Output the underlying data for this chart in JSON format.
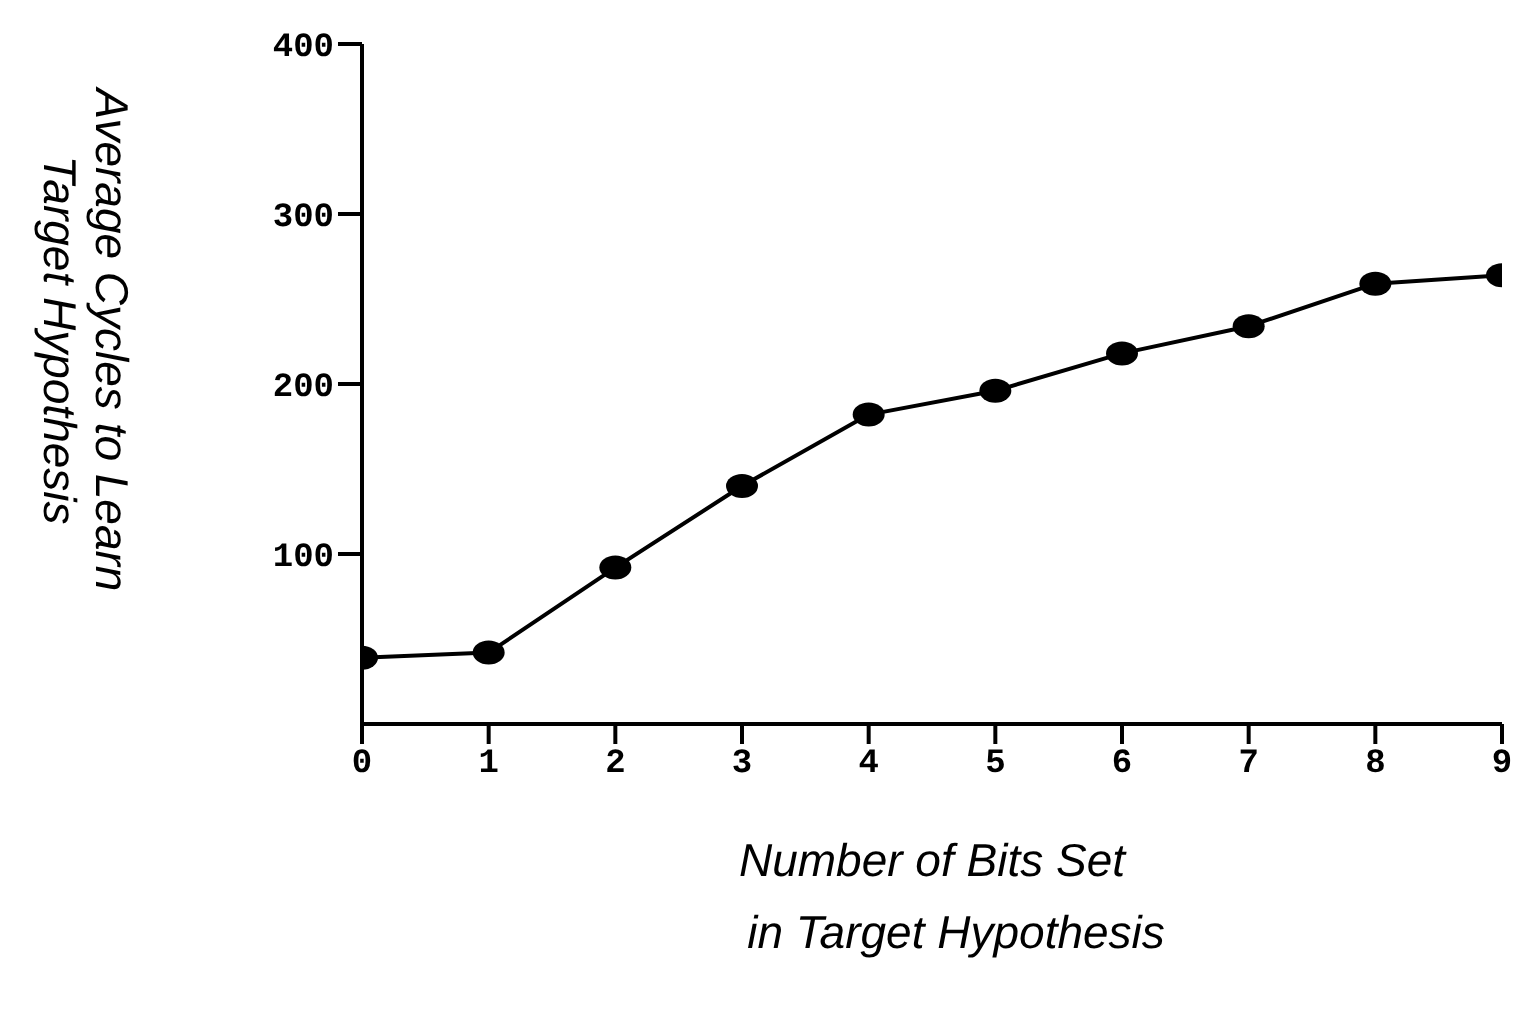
{
  "chart_data": {
    "type": "line",
    "xlabel": "Number of Bits Set\nin Target Hypothesis",
    "ylabel": "Average Cycles to Learn\nTarget Hypothesis",
    "x": [
      0,
      1,
      2,
      3,
      4,
      5,
      6,
      7,
      8,
      9
    ],
    "series": [
      {
        "color": "#000000",
        "values": [
          39,
          42,
          92,
          140,
          182,
          196,
          218,
          234,
          259,
          264
        ]
      }
    ],
    "xlim": [
      0,
      9
    ],
    "xticks": [
      0,
      1,
      2,
      3,
      4,
      5,
      6,
      7,
      8,
      9
    ],
    "ylim": [
      0,
      400
    ],
    "yticks": [
      100,
      200,
      300,
      400
    ],
    "grid": false,
    "legend": false,
    "marker": "circle",
    "line_style": "solid"
  }
}
